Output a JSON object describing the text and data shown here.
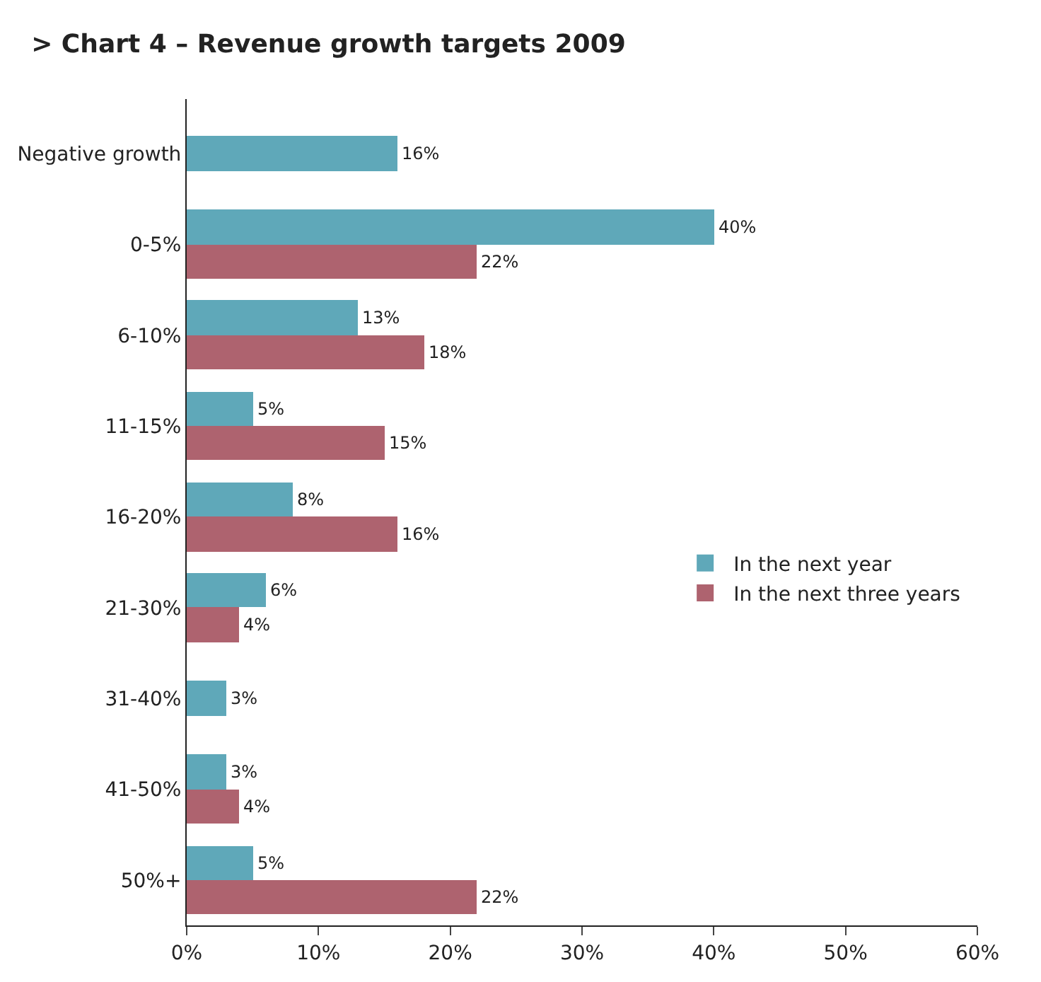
{
  "chart_data": {
    "type": "bar",
    "orientation": "horizontal",
    "title": "> Chart 4 – Revenue growth targets 2009",
    "categories": [
      "Negative growth",
      "0-5%",
      "6-10%",
      "11-15%",
      "16-20%",
      "21-30%",
      "31-40%",
      "41-50%",
      "50%+"
    ],
    "series": [
      {
        "name": "In the next year",
        "color": "#5fa8b9",
        "values": [
          16,
          40,
          13,
          5,
          8,
          6,
          3,
          3,
          5
        ],
        "value_labels": [
          "16%",
          "40%",
          "13%",
          "5%",
          "8%",
          "6%",
          "3%",
          "3%",
          "5%"
        ]
      },
      {
        "name": "In the next three years",
        "color": "#ae636f",
        "values": [
          null,
          22,
          18,
          15,
          16,
          4,
          null,
          4,
          22
        ],
        "value_labels": [
          null,
          "22%",
          "18%",
          "15%",
          "16%",
          "4%",
          null,
          "4%",
          "22%"
        ]
      }
    ],
    "xlim": [
      0,
      60
    ],
    "xticks": [
      {
        "value": 0,
        "label": "0%"
      },
      {
        "value": 10,
        "label": "10%"
      },
      {
        "value": 20,
        "label": "20%"
      },
      {
        "value": 30,
        "label": "30%"
      },
      {
        "value": 40,
        "label": "40%"
      },
      {
        "value": 50,
        "label": "50%"
      },
      {
        "value": 60,
        "label": "60%"
      }
    ],
    "legend": "right"
  }
}
